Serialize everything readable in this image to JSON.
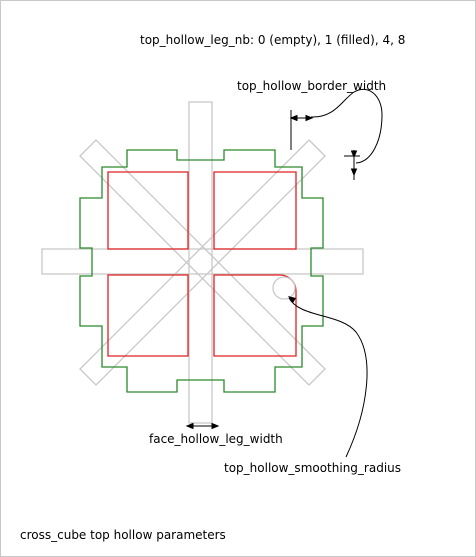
{
  "labels": {
    "leg_nb": "top_hollow_leg_nb: 0 (empty), 1 (filled), 4, 8",
    "border_width": "top_hollow_border_width",
    "leg_width": "face_hollow_leg_width",
    "smoothing_radius": "top_hollow_smoothing_radius",
    "caption": "cross_cube top hollow parameters"
  },
  "colors": {
    "outline": "#2a8a2a",
    "hollow": "#e02020",
    "legs": "#c8c8c8",
    "annotation": "#000000",
    "frame": "#c8c8c8"
  }
}
